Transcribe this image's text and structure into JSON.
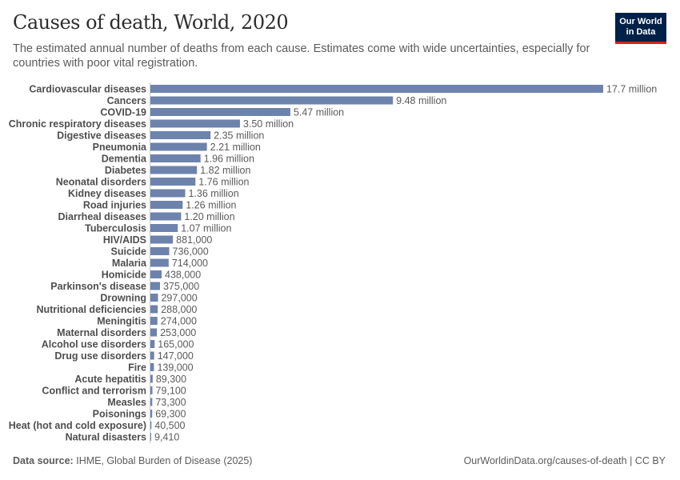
{
  "header": {
    "title": "Causes of death, World, 2020",
    "subtitle": "The estimated annual number of deaths from each cause. Estimates come with wide uncertainties, especially for countries with poor vital registration.",
    "logo": "Our World in Data"
  },
  "footer": {
    "source_label": "Data source:",
    "source": "IHME, Global Burden of Disease (2025)",
    "url": "OurWorldinData.org/causes-of-death | CC BY"
  },
  "colors": {
    "bar": "#6d83ac",
    "axis": "#cccccc"
  },
  "chart_data": {
    "type": "bar",
    "orientation": "horizontal",
    "xlim": [
      0,
      17700000
    ],
    "categories": [
      "Cardiovascular diseases",
      "Cancers",
      "COVID-19",
      "Chronic respiratory diseases",
      "Digestive diseases",
      "Pneumonia",
      "Dementia",
      "Diabetes",
      "Neonatal disorders",
      "Kidney diseases",
      "Road injuries",
      "Diarrheal diseases",
      "Tuberculosis",
      "HIV/AIDS",
      "Suicide",
      "Malaria",
      "Homicide",
      "Parkinson's disease",
      "Drowning",
      "Nutritional deficiencies",
      "Meningitis",
      "Maternal disorders",
      "Alcohol use disorders",
      "Drug use disorders",
      "Fire",
      "Acute hepatitis",
      "Conflict and terrorism",
      "Measles",
      "Poisonings",
      "Heat (hot and cold exposure)",
      "Natural disasters"
    ],
    "values": [
      17700000,
      9480000,
      5470000,
      3500000,
      2350000,
      2210000,
      1960000,
      1820000,
      1760000,
      1360000,
      1260000,
      1200000,
      1070000,
      881000,
      736000,
      714000,
      438000,
      375000,
      297000,
      288000,
      274000,
      253000,
      165000,
      147000,
      139000,
      89300,
      79100,
      73300,
      69300,
      40500,
      9410
    ],
    "labels": [
      "17.7 million",
      "9.48 million",
      "5.47 million",
      "3.50 million",
      "2.35 million",
      "2.21 million",
      "1.96 million",
      "1.82 million",
      "1.76 million",
      "1.36 million",
      "1.26 million",
      "1.20 million",
      "1.07 million",
      "881,000",
      "736,000",
      "714,000",
      "438,000",
      "375,000",
      "297,000",
      "288,000",
      "274,000",
      "253,000",
      "165,000",
      "147,000",
      "139,000",
      "89,300",
      "79,100",
      "73,300",
      "69,300",
      "40,500",
      "9,410"
    ]
  }
}
